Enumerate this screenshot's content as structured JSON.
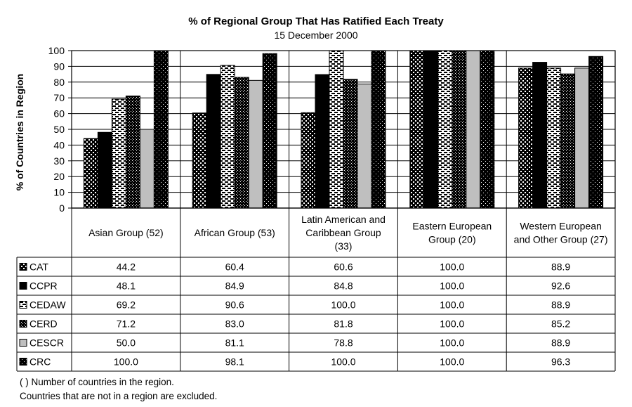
{
  "chart_data": {
    "type": "bar",
    "title": "% of Regional Group That Has Ratified Each Treaty",
    "subtitle": "15 December 2000",
    "ylabel": "% of Countries in Region",
    "ylim": [
      0,
      100
    ],
    "yticks": [
      0,
      10,
      20,
      30,
      40,
      50,
      60,
      70,
      80,
      90,
      100
    ],
    "grid": true,
    "categories": [
      "Asian Group (52)",
      "African Group (53)",
      "Latin American and Caribbean Group (33)",
      "Eastern European Group (20)",
      "Western European and Other Group (27)"
    ],
    "category_lines": [
      [
        "Asian Group (52)"
      ],
      [
        "African Group (53)"
      ],
      [
        "Latin American and",
        "Caribbean Group",
        "(33)"
      ],
      [
        "Eastern European",
        "Group (20)"
      ],
      [
        "Western European",
        "and Other Group (27)"
      ]
    ],
    "series": [
      {
        "name": "CAT",
        "values": [
          44.2,
          60.4,
          60.6,
          100.0,
          88.9
        ],
        "labels": [
          "44.2",
          "60.4",
          "60.6",
          "100.0",
          "88.9"
        ],
        "pattern": "diagonal-dots",
        "color": "#000000"
      },
      {
        "name": "CCPR",
        "values": [
          48.1,
          84.9,
          84.8,
          100.0,
          92.6
        ],
        "labels": [
          "48.1",
          "84.9",
          "84.8",
          "100.0",
          "92.6"
        ],
        "pattern": "solid",
        "color": "#000000"
      },
      {
        "name": "CEDAW",
        "values": [
          69.2,
          90.6,
          100.0,
          100.0,
          88.9
        ],
        "labels": [
          "69.2",
          "90.6",
          "100.0",
          "100.0",
          "88.9"
        ],
        "pattern": "horizontal-dashes",
        "color": "#000000"
      },
      {
        "name": "CERD",
        "values": [
          71.2,
          83.0,
          81.8,
          100.0,
          85.2
        ],
        "labels": [
          "71.2",
          "83.0",
          "81.8",
          "100.0",
          "85.2"
        ],
        "pattern": "dense-dots",
        "color": "#000000"
      },
      {
        "name": "CESCR",
        "values": [
          50.0,
          81.1,
          78.8,
          100.0,
          88.9
        ],
        "labels": [
          "50.0",
          "81.1",
          "78.8",
          "100.0",
          "88.9"
        ],
        "pattern": "solid-gray",
        "color": "#bfbfbf"
      },
      {
        "name": "CRC",
        "values": [
          100.0,
          98.1,
          100.0,
          100.0,
          96.3
        ],
        "labels": [
          "100.0",
          "98.1",
          "100.0",
          "100.0",
          "96.3"
        ],
        "pattern": "checker",
        "color": "#000000"
      }
    ]
  },
  "footnotes": {
    "note1": "( ) Number of countries in the region.",
    "note2": "Countries that are not in a region are excluded."
  }
}
